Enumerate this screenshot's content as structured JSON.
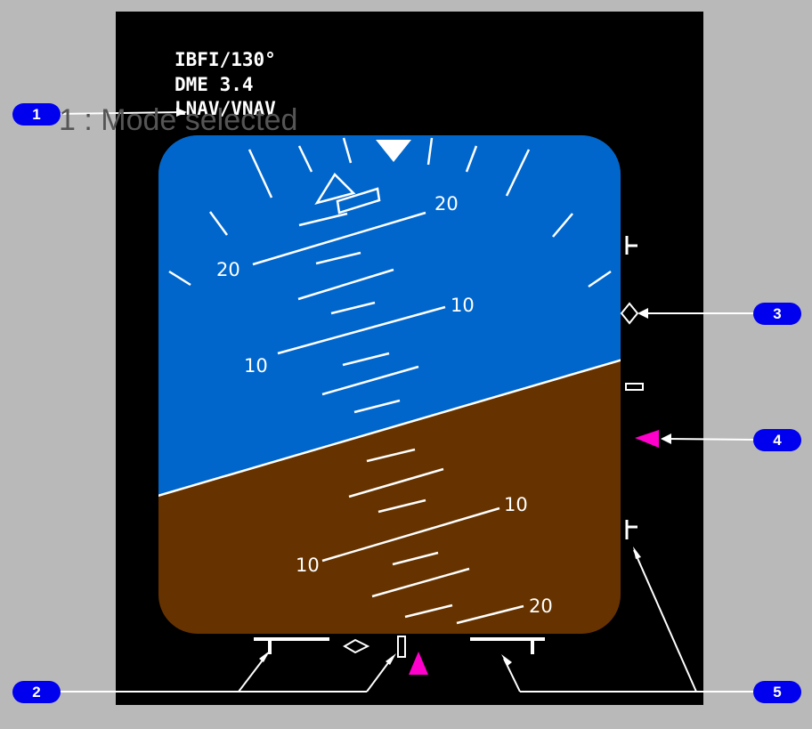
{
  "info": {
    "line1": "IBFI/130°",
    "line2": "DME 3.4",
    "line3": "LNAV/VNAV"
  },
  "overlay_caption": "1 : Mode selected",
  "pitch_labels": {
    "up20_left": "20",
    "up20_right": "20",
    "up10_left": "10",
    "up10_right": "10",
    "down10_left": "10",
    "down10_right": "10",
    "down20_right": "20"
  },
  "callouts": [
    "1",
    "2",
    "3",
    "4",
    "5"
  ],
  "colors": {
    "background": "#b9b9b9",
    "screen": "#000000",
    "sky": "#0066cc",
    "ground": "#663300",
    "symbology": "#ffffff",
    "magenta": "#ff00cc",
    "callout_badge": "#0000ee"
  },
  "icons": [
    "sky-pointer-icon",
    "bank-scale-icon",
    "deviation-diamond-icon",
    "deviation-marker-icon",
    "magenta-target-icon",
    "deviation-scale-limit-icon"
  ]
}
